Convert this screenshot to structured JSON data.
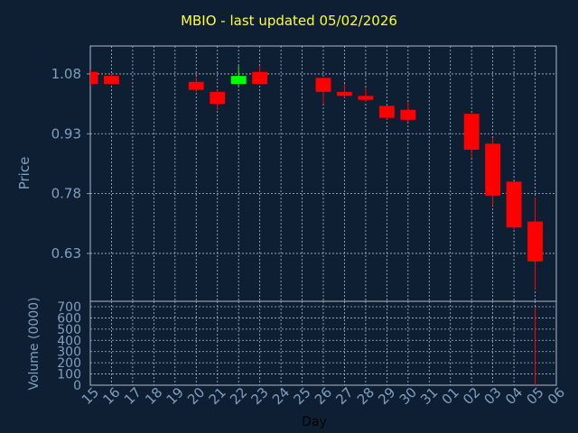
{
  "chart_data": {
    "type": "candlestick",
    "title": "MBIO - last updated 05/02/2026",
    "colors": {
      "background": "#0f1f33",
      "title": "#ffff33",
      "axis_text": "#7f9fbf",
      "grid": "#b0b8c8",
      "up": "#00ff00",
      "down": "#ff0000"
    },
    "grid": true,
    "x_label": "Day",
    "x_ticks": [
      "15",
      "16",
      "17",
      "18",
      "19",
      "20",
      "21",
      "22",
      "23",
      "24",
      "25",
      "26",
      "27",
      "28",
      "29",
      "30",
      "31",
      "01",
      "02",
      "03",
      "04",
      "05",
      "06"
    ],
    "price_panel": {
      "ylabel": "Price",
      "ylim": [
        0.51,
        1.15
      ],
      "yticks": [
        "1.08",
        "0.93",
        "0.78",
        "0.63"
      ],
      "ytick_values": [
        1.08,
        0.93,
        0.78,
        0.63
      ]
    },
    "volume_panel": {
      "ylabel": "Volume (0000)",
      "ylim": [
        0,
        700
      ],
      "yticks": [
        "700",
        "600",
        "500",
        "400",
        "300",
        "200",
        "100",
        "0"
      ],
      "ytick_values": [
        700,
        600,
        500,
        400,
        300,
        200,
        100,
        0
      ]
    },
    "candles": [
      {
        "x": 15.0,
        "open": 1.085,
        "close": 1.055,
        "high": 1.09,
        "low": 1.05,
        "volume": 0
      },
      {
        "x": 16.0,
        "open": 1.075,
        "close": 1.055,
        "high": 1.08,
        "low": 1.055,
        "volume": 0
      },
      {
        "x": 20.0,
        "open": 1.06,
        "close": 1.04,
        "high": 1.07,
        "low": 1.035,
        "volume": 0
      },
      {
        "x": 21.0,
        "open": 1.035,
        "close": 1.005,
        "high": 1.04,
        "low": 0.99,
        "volume": 0
      },
      {
        "x": 22.0,
        "open": 1.055,
        "close": 1.075,
        "high": 1.1,
        "low": 1.05,
        "volume": 0
      },
      {
        "x": 23.0,
        "open": 1.085,
        "close": 1.055,
        "high": 1.1,
        "low": 1.055,
        "volume": 0
      },
      {
        "x": 26.0,
        "open": 1.07,
        "close": 1.035,
        "high": 1.07,
        "low": 1.005,
        "volume": 0
      },
      {
        "x": 27.0,
        "open": 1.035,
        "close": 1.025,
        "high": 1.055,
        "low": 1.02,
        "volume": 0
      },
      {
        "x": 28.0,
        "open": 1.025,
        "close": 1.015,
        "high": 1.045,
        "low": 1.01,
        "volume": 0
      },
      {
        "x": 29.0,
        "open": 1.0,
        "close": 0.97,
        "high": 1.0,
        "low": 0.965,
        "volume": 0
      },
      {
        "x": 30.0,
        "open": 0.99,
        "close": 0.965,
        "high": 1.01,
        "low": 0.96,
        "volume": 0
      },
      {
        "x": 33.0,
        "open": 0.98,
        "close": 0.89,
        "high": 0.98,
        "low": 0.87,
        "volume": 0
      },
      {
        "x": 34.0,
        "open": 0.905,
        "close": 0.775,
        "high": 0.92,
        "low": 0.75,
        "volume": 5
      },
      {
        "x": 35.0,
        "open": 0.81,
        "close": 0.695,
        "high": 0.81,
        "low": 0.69,
        "volume": 0
      },
      {
        "x": 36.0,
        "open": 0.71,
        "close": 0.61,
        "high": 0.77,
        "low": 0.54,
        "volume": 690
      }
    ]
  }
}
